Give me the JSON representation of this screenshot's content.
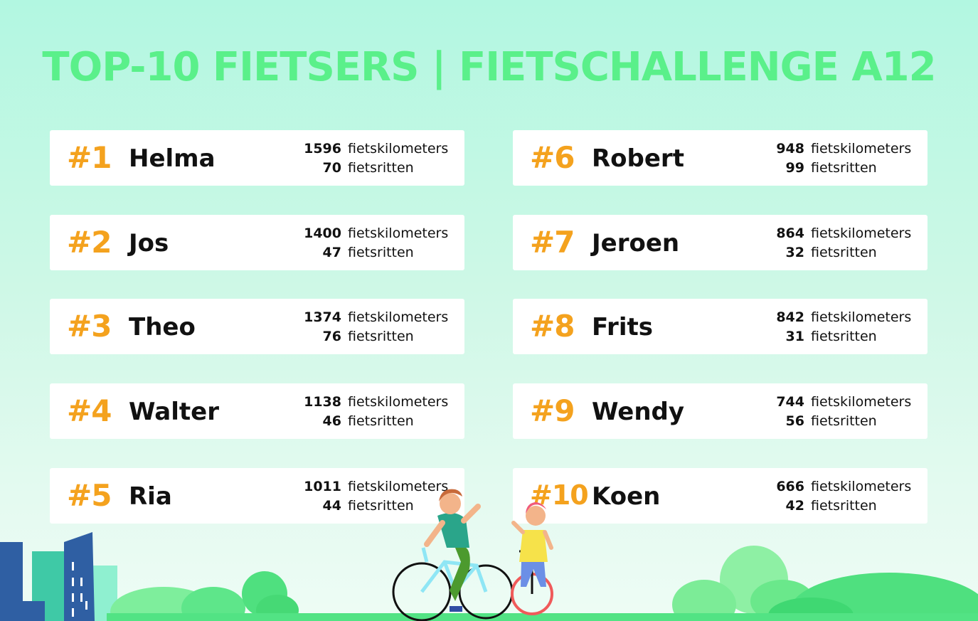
{
  "title": "TOP-10 FIETSERS | FIETSCHALLENGE A12",
  "colors": {
    "title": "#5af08a",
    "rank": "#f4a21e",
    "card": "#ffffff",
    "text": "#111111"
  },
  "unit_km": "fietskilometers",
  "unit_rides": "fietsritten",
  "entries": [
    {
      "rank": "#1",
      "name": "Helma",
      "km": "1596",
      "rides": "70"
    },
    {
      "rank": "#2",
      "name": "Jos",
      "km": "1400",
      "rides": "47"
    },
    {
      "rank": "#3",
      "name": "Theo",
      "km": "1374",
      "rides": "76"
    },
    {
      "rank": "#4",
      "name": "Walter",
      "km": "1138",
      "rides": "46"
    },
    {
      "rank": "#5",
      "name": "Ria",
      "km": "1011",
      "rides": "44"
    },
    {
      "rank": "#6",
      "name": "Robert",
      "km": "948",
      "rides": "99"
    },
    {
      "rank": "#7",
      "name": "Jeroen",
      "km": "864",
      "rides": "32"
    },
    {
      "rank": "#8",
      "name": "Frits",
      "km": "842",
      "rides": "31"
    },
    {
      "rank": "#9",
      "name": "Wendy",
      "km": "744",
      "rides": "56"
    },
    {
      "rank": "#10",
      "name": "Koen",
      "km": "666",
      "rides": "42"
    }
  ],
  "illustration": {
    "icons": [
      "city-buildings-icon",
      "bush-icon",
      "cyclist-woman-icon",
      "cyclist-child-icon"
    ]
  }
}
